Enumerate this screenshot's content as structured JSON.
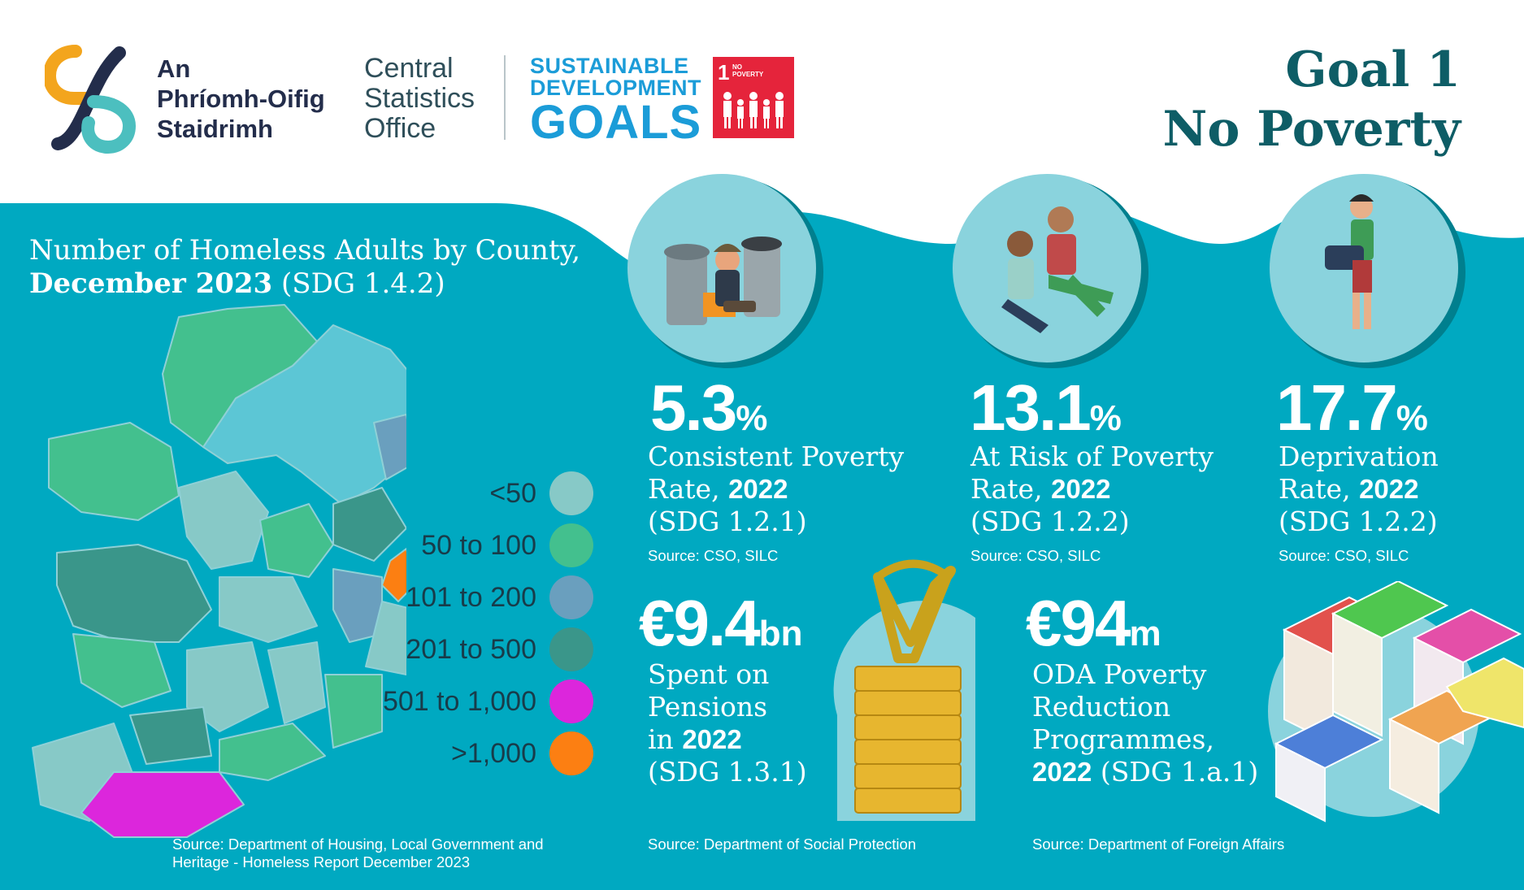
{
  "header": {
    "logo_ga_lines": [
      "An",
      "Phríomh-Oifig",
      "Staidrimh"
    ],
    "logo_en_lines": [
      "Central",
      "Statistics",
      "Office"
    ],
    "sdg_lines": [
      "SUSTAINABLE",
      "DEVELOPMENT",
      "GOALS"
    ],
    "goal_box_number": "1",
    "goal_box_text": [
      "NO",
      "POVERTY"
    ],
    "goal_title_1": "Goal 1",
    "goal_title_2": "No Poverty",
    "colors": {
      "goal_red": "#e5243b",
      "title_teal": "#0e5d66",
      "sdg_blue": "#1b9cd8"
    }
  },
  "map": {
    "title_line1": "Number of Homeless Adults by County,",
    "title_bold": "December 2023",
    "title_rest": " (SDG 1.4.2)",
    "legend": [
      {
        "label": "<50",
        "color": "#87c9c7"
      },
      {
        "label": "50 to 100",
        "color": "#43c08e"
      },
      {
        "label": "101 to 200",
        "color": "#6a9fbe"
      },
      {
        "label": "201 to 500",
        "color": "#3a968a"
      },
      {
        "label": "501 to 1,000",
        "color": "#dc26dc"
      },
      {
        "label": ">1,000",
        "color": "#fc7f12"
      }
    ],
    "source_lines": [
      "Source: Department of Housing, Local Government and",
      "Heritage - Homeless Report December 2023"
    ]
  },
  "stats": [
    {
      "value": "5.3",
      "unit": "%",
      "line1": "Consistent Poverty",
      "line2_text": "Rate, ",
      "line2_bold": "2022",
      "line3": "(SDG 1.2.1)",
      "source": "Source: CSO, SILC",
      "icon": "homeless-person-bins-icon"
    },
    {
      "value": "13.1",
      "unit": "%",
      "line1": "At Risk of Poverty",
      "line2_text": "Rate, ",
      "line2_bold": "2022",
      "line3": "(SDG 1.2.2)",
      "source": "Source: CSO, SILC",
      "icon": "two-people-sitting-icon"
    },
    {
      "value": "17.7",
      "unit": "%",
      "line1": "Deprivation",
      "line2_text": "Rate, ",
      "line2_bold": "2022",
      "line3": "(SDG 1.2.2)",
      "source": "Source: CSO, SILC",
      "icon": "walking-person-bag-icon"
    }
  ],
  "pensions": {
    "value": "€9.4",
    "unit": "bn",
    "line1": "Spent on",
    "line2": "Pensions",
    "line3_text": "in ",
    "line3_bold": "2022",
    "line4": "(SDG 1.3.1)",
    "source": "Source: Department of Social Protection",
    "icon": "harp-coins-icon"
  },
  "oda": {
    "value": "€94",
    "unit": "m",
    "line1": "ODA Poverty",
    "line2": "Reduction",
    "line3": "Programmes,",
    "line4_bold": "2022",
    "line4_text": " (SDG 1.a.1)",
    "source": "Source: Department of Foreign Affairs",
    "icon": "euro-banknotes-icon"
  },
  "colors": {
    "background_teal": "#00a9c1",
    "circle_light": "#8ad3dd",
    "circle_shadow": "#007f8e"
  }
}
